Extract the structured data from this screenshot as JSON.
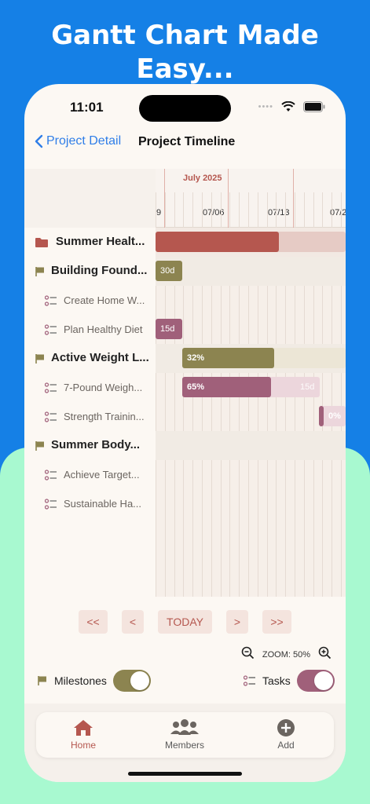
{
  "promo": {
    "headline_line1": "Gantt Chart Made",
    "headline_line2": "Easy..."
  },
  "status": {
    "time": "11:01"
  },
  "nav": {
    "back_label": "Project Detail",
    "title": "Project Timeline"
  },
  "timeline": {
    "month": "July 2025",
    "dates": [
      "9",
      "07/06",
      "07/13",
      "07/2"
    ]
  },
  "tasks": [
    {
      "label": "Summer Healt...",
      "level": 0,
      "icon": "folder-icon"
    },
    {
      "label": "Building Found...",
      "level": 1,
      "icon": "flag-icon",
      "bar_text": "30d"
    },
    {
      "label": "Create Home W...",
      "level": 2,
      "icon": "task-list-icon"
    },
    {
      "label": "Plan Healthy Diet",
      "level": 2,
      "icon": "task-list-icon",
      "bar_text": "15d"
    },
    {
      "label": "Active Weight L...",
      "level": 1,
      "icon": "flag-icon",
      "bar_text": "32%"
    },
    {
      "label": "7-Pound Weigh...",
      "level": 2,
      "icon": "task-list-icon",
      "bar_text": "65%",
      "bar_end": "15d"
    },
    {
      "label": "Strength Trainin...",
      "level": 2,
      "icon": "task-list-icon",
      "bar_text": "0%"
    },
    {
      "label": "Summer Body...",
      "level": 1,
      "icon": "flag-icon"
    },
    {
      "label": "Achieve Target...",
      "level": 2,
      "icon": "task-list-icon"
    },
    {
      "label": "Sustainable Ha...",
      "level": 2,
      "icon": "task-list-icon"
    }
  ],
  "controls": {
    "first": "<<",
    "prev": "<",
    "today": "TODAY",
    "next": ">",
    "last": ">>",
    "zoom_label": "ZOOM: 50%"
  },
  "toggles": {
    "milestones": "Milestones",
    "tasks": "Tasks"
  },
  "tabbar": {
    "home": "Home",
    "members": "Members",
    "add": "Add"
  },
  "colors": {
    "accent": "#b5574f",
    "olive": "#8c8450",
    "mauve": "#a0607a",
    "link": "#2f7ee8"
  }
}
